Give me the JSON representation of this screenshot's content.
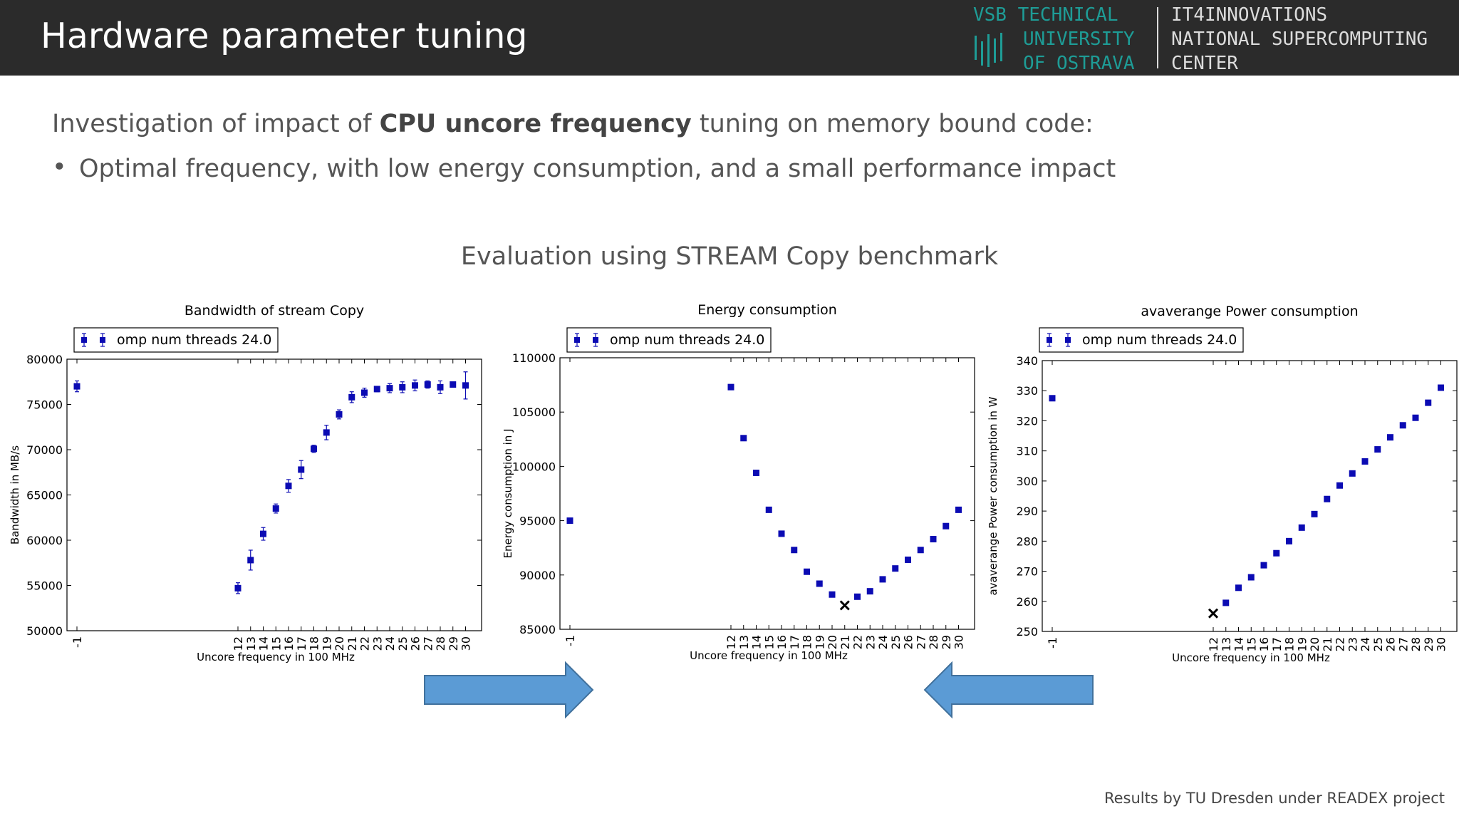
{
  "header": {
    "title": "Hardware parameter tuning",
    "logo_vsb": [
      "VSB TECHNICAL",
      "UNIVERSITY",
      "OF OSTRAVA"
    ],
    "logo_it4i": [
      "IT4INNOVATIONS",
      "NATIONAL SUPERCOMPUTING",
      "CENTER"
    ]
  },
  "intro": {
    "prefix": "Investigation of impact of ",
    "bold": "CPU uncore frequency",
    "suffix": " tuning on memory bound code:"
  },
  "bullet": "Optimal frequency, with low energy consumption, and a small performance impact",
  "evaluation_title": "Evaluation using STREAM Copy benchmark",
  "credit": "Results by TU Dresden under READEX project",
  "colors": {
    "series": "#0b0bb3",
    "arrow": "#5b9bd5",
    "arrow_border": "#41719c"
  },
  "chart_data": [
    {
      "type": "scatter",
      "title": "Bandwidth of stream Copy",
      "xlabel": "Uncore frequency in 100 MHz",
      "ylabel": "Bandwidth in MB/s",
      "legend": "omp num threads 24.0",
      "x": [
        "-1",
        "12",
        "13",
        "14",
        "15",
        "16",
        "17",
        "18",
        "19",
        "20",
        "21",
        "22",
        "23",
        "24",
        "25",
        "26",
        "27",
        "28",
        "29",
        "30"
      ],
      "values": [
        77000,
        54700,
        57800,
        60700,
        63500,
        66000,
        67800,
        70100,
        71900,
        73900,
        75800,
        76300,
        76700,
        76800,
        76900,
        77100,
        77200,
        76900,
        77200,
        77100
      ],
      "error": [
        600,
        600,
        1100,
        700,
        500,
        700,
        1000,
        400,
        800,
        500,
        600,
        500,
        300,
        500,
        600,
        600,
        400,
        700,
        200,
        1500
      ],
      "ylim": [
        50000,
        80000
      ],
      "yticks": [
        50000,
        55000,
        60000,
        65000,
        70000,
        75000,
        80000
      ]
    },
    {
      "type": "scatter",
      "title": "Energy consumption",
      "xlabel": "Uncore frequency in 100 MHz",
      "ylabel": "Energy consumption in J",
      "legend": "omp num threads 24.0",
      "x": [
        "-1",
        "12",
        "13",
        "14",
        "15",
        "16",
        "17",
        "18",
        "19",
        "20",
        "21",
        "22",
        "23",
        "24",
        "25",
        "26",
        "27",
        "28",
        "29",
        "30"
      ],
      "values": [
        95000,
        107300,
        102600,
        99400,
        96000,
        93800,
        92300,
        90300,
        89200,
        88200,
        87200,
        88000,
        88500,
        89600,
        90600,
        91400,
        92300,
        93300,
        94500,
        96000
      ],
      "ylim": [
        85000,
        110000
      ],
      "yticks": [
        85000,
        90000,
        95000,
        100000,
        105000,
        110000
      ],
      "optimum_x": "21"
    },
    {
      "type": "scatter",
      "title": "avaverange Power consumption",
      "xlabel": "Uncore frequency in 100 MHz",
      "ylabel": "avaverange Power consumption in W",
      "legend": "omp num threads 24.0",
      "x": [
        "-1",
        "12",
        "13",
        "14",
        "15",
        "16",
        "17",
        "18",
        "19",
        "20",
        "21",
        "22",
        "23",
        "24",
        "25",
        "26",
        "27",
        "28",
        "29",
        "30"
      ],
      "values": [
        327.5,
        256,
        259.5,
        264.5,
        268,
        272,
        276,
        280,
        284.5,
        289,
        294,
        298.5,
        302.5,
        306.5,
        310.5,
        314.5,
        318.5,
        321,
        326,
        331
      ],
      "ylim": [
        250,
        340
      ],
      "yticks": [
        250,
        260,
        270,
        280,
        290,
        300,
        310,
        320,
        330,
        340
      ],
      "optimum_x": "12"
    }
  ]
}
